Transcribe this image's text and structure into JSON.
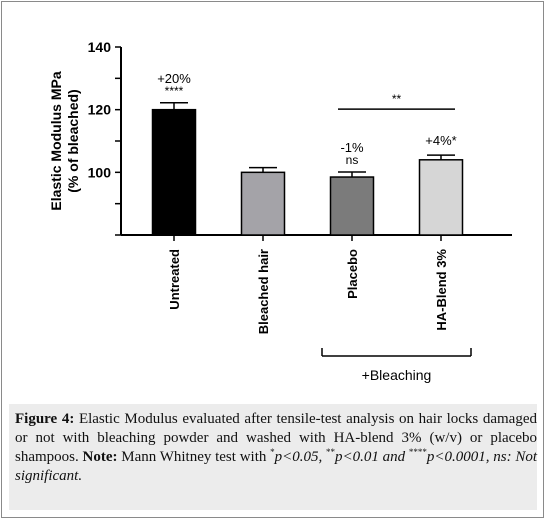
{
  "chart_data": {
    "type": "bar",
    "ylabel_line1": "Elastic Modulus MPa",
    "ylabel_line2": "(% of bleached)",
    "ylim": [
      80,
      140
    ],
    "yticks": [
      100,
      120,
      140
    ],
    "categories": [
      "Untreated",
      "Bleached hair",
      "Placebo",
      "HA-Blend 3%"
    ],
    "values": [
      120,
      100,
      98.5,
      104
    ],
    "errors": [
      2.2,
      1.5,
      1.6,
      1.5
    ],
    "colors": [
      "#000000",
      "#a4a3a8",
      "#7b7b7b",
      "#d6d6d6"
    ],
    "annotations": [
      {
        "category": "Untreated",
        "pct": "+20%",
        "sig": "****"
      },
      {
        "category": "Placebo",
        "pct": "-1%",
        "sig": "ns"
      },
      {
        "category": "HA-Blend 3%",
        "pct": "+4%*",
        "sig": ""
      }
    ],
    "comparison": {
      "between": [
        "Placebo",
        "HA-Blend 3%"
      ],
      "label": "**"
    },
    "group_label": "+Bleaching"
  },
  "caption": {
    "figure_label": "Figure 4:",
    "text": " Elastic Modulus evaluated after tensile-test analysis on hair locks damaged or not with bleaching powder and washed with HA-blend 3% (w/v) or placebo shampoos. ",
    "note_label": "Note:",
    "note_text": " Mann Whitney test with ",
    "sig1_stars": "*",
    "sig1_text": "p<0.05, ",
    "sig2_stars": "**",
    "sig2_text": "p<0.01 and ",
    "sig4_stars": "****",
    "sig4_text": "p<0.0001, ns: Not significant."
  }
}
